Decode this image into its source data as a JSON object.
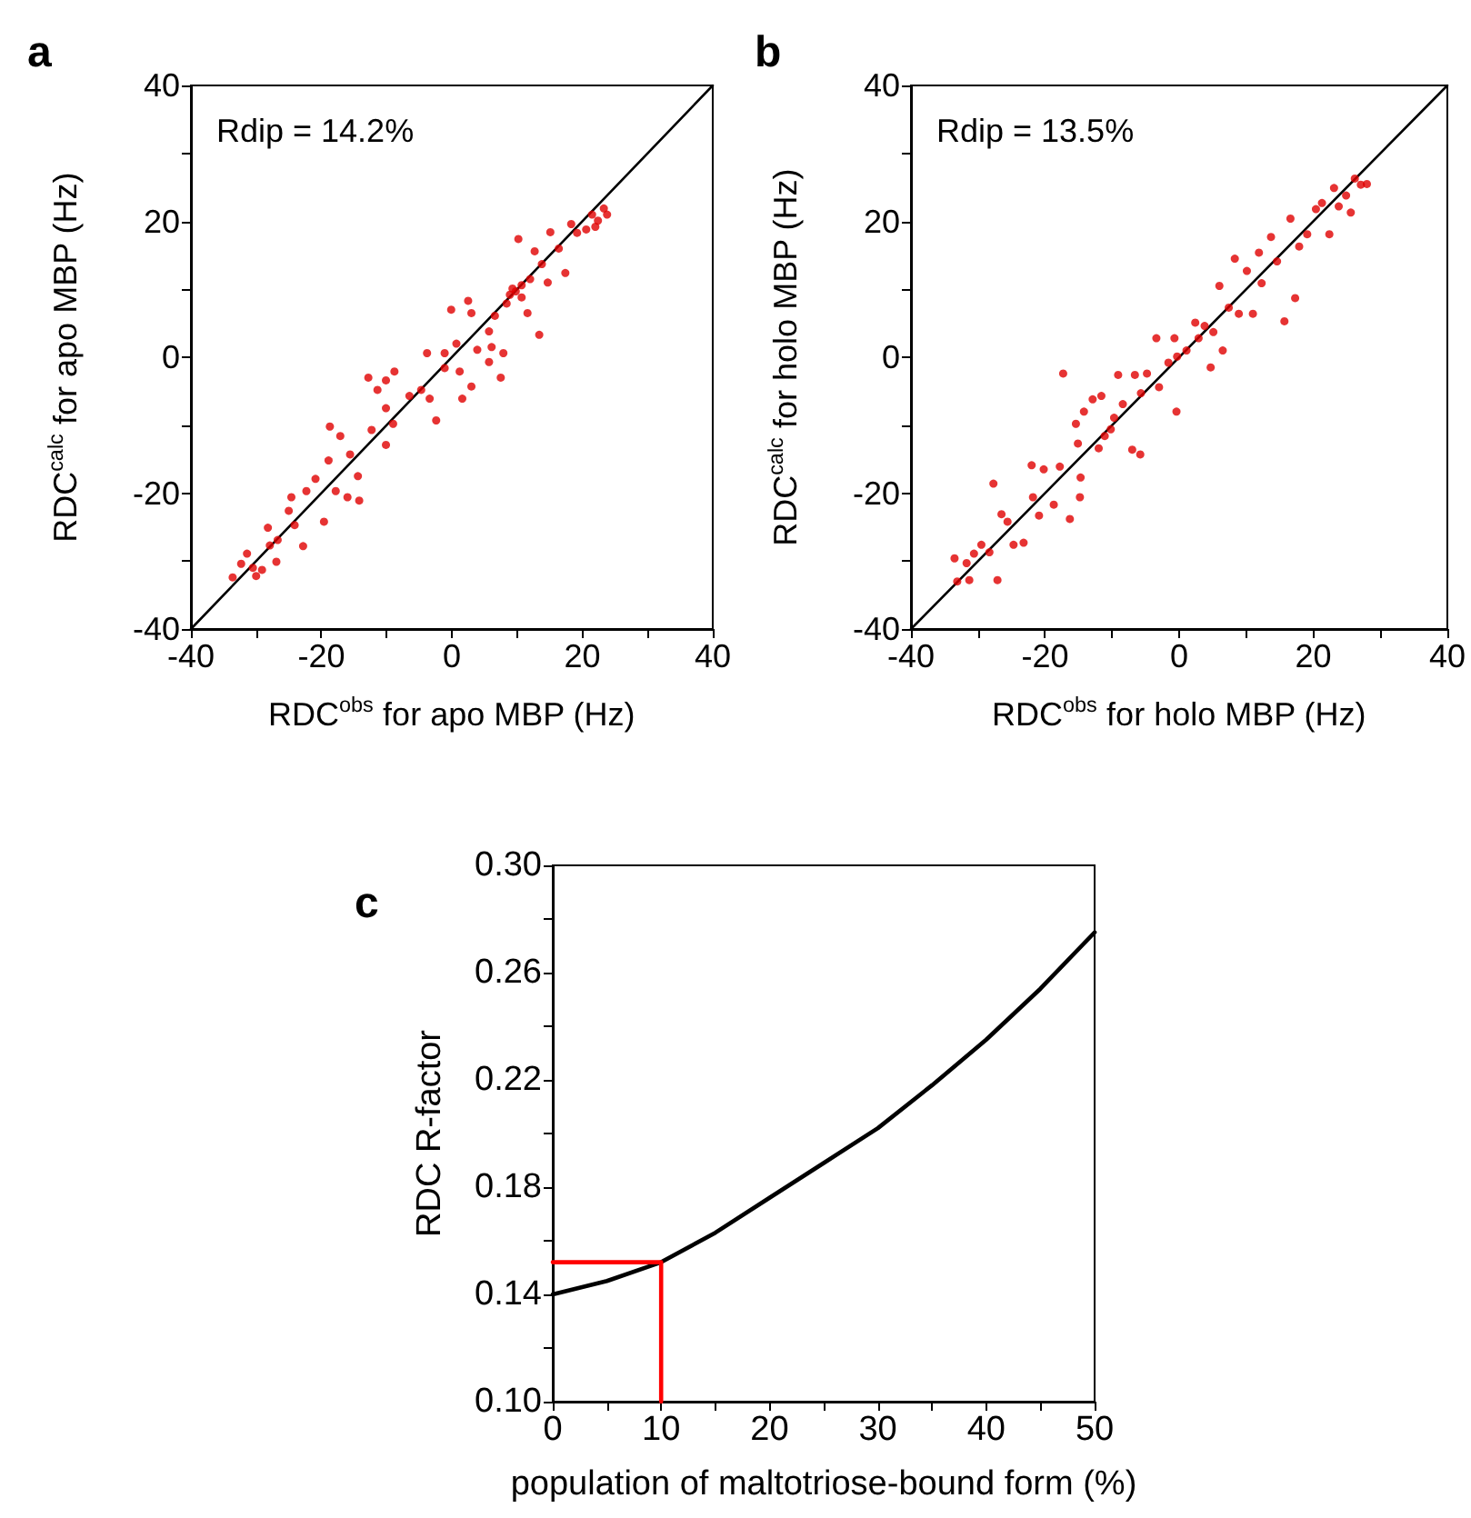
{
  "chart_data": [
    {
      "type": "scatter",
      "title": "a",
      "xlabel": "RDC$^{obs}$ for apo MBP (Hz)",
      "ylabel": "RDC$^{calc}$ for apo MBP (Hz)",
      "annotations": [
        "Rdip = 14.2%"
      ],
      "xlim": [
        -40,
        40
      ],
      "ylim": [
        -40,
        40
      ],
      "xticks": [
        -40,
        {
          "value": -30,
          "label": null
        },
        -20,
        {
          "value": -10,
          "label": null
        },
        0,
        {
          "value": 10,
          "label": null
        },
        20,
        {
          "value": 30,
          "label": null
        },
        40
      ],
      "yticks": [
        -40,
        {
          "value": -30,
          "label": null
        },
        -20,
        {
          "value": -10,
          "label": null
        },
        0,
        {
          "value": 10,
          "label": null
        },
        20,
        {
          "value": 30,
          "label": null
        },
        40
      ],
      "grid": false,
      "marker": "circle",
      "series": [
        {
          "color": "#e00000",
          "x": [
            -33.6,
            -32.3,
            -31.4,
            -30.5,
            -30,
            -29.1,
            -28.2,
            -27.9,
            -26.9,
            -26.7,
            -24.6,
            -25,
            -24.1,
            -22.8,
            -22.3,
            -20.9,
            -19.6,
            -18.7,
            -18.9,
            -17.8,
            -17.1,
            -16,
            -15.6,
            -14.4,
            -14.2,
            -12.8,
            -12.3,
            -11.4,
            -10.1,
            -10.1,
            -10.1,
            -8.8,
            -9,
            -6.5,
            -4.7,
            -3.8,
            -3.4,
            -2.4,
            -1.1,
            -1.1,
            -0.1,
            0.7,
            1.2,
            1.6,
            2.5,
            3,
            3,
            3.9,
            5.7,
            6.1,
            6.6,
            7.5,
            7.9,
            8.4,
            9.3,
            10.2,
            10.7,
            11.6,
            12,
            12.7,
            13.4,
            13.8,
            14.7,
            15.1,
            16.4,
            17.4,
            18.3,
            19.2,
            20.6,
            21.5,
            22,
            22.4,
            23.3,
            23.8,
            8.9,
            9.8,
            10.7,
            5.7
          ],
          "values": [
            -32.4,
            -30.4,
            -28.9,
            -31,
            -32.2,
            -31.3,
            -25.1,
            -27.7,
            -30.1,
            -26.9,
            -20.6,
            -22.6,
            -24.7,
            -27.8,
            -19.7,
            -17.9,
            -24.2,
            -10.2,
            -15.2,
            -19.7,
            -11.6,
            -20.6,
            -14.3,
            -17.5,
            -21.1,
            -3,
            -10.7,
            -4.8,
            -3.4,
            -7.5,
            -12.9,
            -2.1,
            -9.8,
            -5.7,
            -4.8,
            0.6,
            -6.1,
            -9.3,
            0.6,
            -1.6,
            7,
            2,
            -2.1,
            -6.1,
            8.3,
            6.5,
            -4.3,
            1.1,
            3.8,
            1.5,
            6.1,
            -3,
            0.6,
            7.9,
            10.1,
            17.4,
            8.8,
            6.5,
            11.5,
            15.6,
            3.3,
            13.7,
            11,
            18.4,
            16,
            12.4,
            19.6,
            18.3,
            18.8,
            21,
            19.2,
            20.1,
            21.9,
            21,
            9.2,
            9.7,
            10.6,
            -0.7
          ]
        },
        {
          "type": "line",
          "color": "#000000",
          "marker": "none",
          "line_style": "solid",
          "x": [
            -40,
            40
          ],
          "values": [
            -40,
            40
          ]
        }
      ]
    },
    {
      "type": "scatter",
      "title": "b",
      "xlabel": "RDC$^{obs}$ for holo MBP (Hz)",
      "ylabel": "RDC$^{calc}$ for holo MBP (Hz)",
      "annotations": [
        "Rdip = 13.5%"
      ],
      "xlim": [
        -40,
        40
      ],
      "ylim": [
        -40,
        40
      ],
      "xticks": [
        -40,
        {
          "value": -30,
          "label": null
        },
        -20,
        {
          "value": -10,
          "label": null
        },
        0,
        {
          "value": 10,
          "label": null
        },
        20,
        {
          "value": 30,
          "label": null
        },
        40
      ],
      "yticks": [
        -40,
        {
          "value": -30,
          "label": null
        },
        -20,
        {
          "value": -10,
          "label": null
        },
        0,
        {
          "value": 10,
          "label": null
        },
        20,
        {
          "value": 30,
          "label": null
        },
        40
      ],
      "grid": false,
      "marker": "circle",
      "series": [
        {
          "color": "#e00000",
          "x": [
            -33.5,
            -33.1,
            -31.7,
            -31.3,
            -30.6,
            -29.5,
            -28.3,
            -27.7,
            -27.1,
            -26.5,
            -25.6,
            -24.7,
            -23.2,
            -22,
            -21.8,
            -20.9,
            -20.2,
            -18.7,
            -17.8,
            -17.3,
            -16.3,
            -15.4,
            -15.1,
            -14.8,
            -14.7,
            -14.2,
            -12.9,
            -12,
            -11.6,
            -11.1,
            -10.2,
            -9.7,
            -9.1,
            -8.4,
            -7,
            -6.6,
            -5.8,
            -5.7,
            -4.8,
            -3.4,
            -3,
            -1.6,
            -0.7,
            -0.4,
            -0.3,
            1.1,
            2.4,
            2.9,
            3.8,
            4.7,
            5.1,
            6,
            6.5,
            7.4,
            8.3,
            8.9,
            10.1,
            11,
            11.9,
            12.3,
            13.7,
            14.6,
            15.7,
            16.6,
            17.3,
            17.9,
            19.1,
            20.4,
            21.3,
            22.4,
            23.1,
            23.8,
            24.9,
            25.6,
            26.2,
            27.1,
            28
          ],
          "values": [
            -29.6,
            -33,
            -30.3,
            -32.8,
            -28.9,
            -27.6,
            -28.7,
            -18.6,
            -32.8,
            -23.1,
            -24.2,
            -27.6,
            -27.3,
            -15.9,
            -20.6,
            -23.3,
            -16.5,
            -21.7,
            -16.1,
            -2.4,
            -23.8,
            -9.8,
            -12.7,
            -20.6,
            -17.7,
            -8,
            -6.2,
            -13.4,
            -5.7,
            -11.6,
            -10.6,
            -8.9,
            -2.6,
            -6.9,
            -13.6,
            -2.6,
            -14.3,
            -5.3,
            -2.4,
            2.8,
            -4.4,
            -0.8,
            2.8,
            -8,
            0.1,
            1,
            5.1,
            2.8,
            4.6,
            -1.5,
            3.7,
            10.5,
            1,
            7.3,
            14.5,
            6.4,
            12.7,
            6.4,
            15.4,
            10.9,
            17.7,
            14.1,
            5.3,
            20.4,
            8.7,
            16.3,
            18.1,
            21.8,
            22.7,
            18.1,
            24.9,
            22.2,
            23.8,
            21.3,
            26.3,
            25.4,
            25.5
          ]
        },
        {
          "type": "line",
          "color": "#000000",
          "marker": "none",
          "line_style": "solid",
          "x": [
            -40,
            40
          ],
          "values": [
            -40,
            40
          ]
        }
      ]
    },
    {
      "type": "line",
      "title": "c",
      "xlabel": "population of maltotriose-bound form (%)",
      "ylabel": "RDC R-factor",
      "xlim": [
        0,
        50
      ],
      "ylim": [
        0.1,
        0.3
      ],
      "xticks": [
        0,
        {
          "value": 5,
          "label": null
        },
        10,
        {
          "value": 15,
          "label": null
        },
        20,
        {
          "value": 25,
          "label": null
        },
        30,
        {
          "value": 35,
          "label": null
        },
        40,
        {
          "value": 45,
          "label": null
        },
        50
      ],
      "yticks": [
        {
          "value": 0.1,
          "label": "0.10"
        },
        {
          "value": 0.12,
          "label": null
        },
        0.14,
        {
          "value": 0.16,
          "label": null
        },
        0.18,
        {
          "value": 0.2,
          "label": null
        },
        0.22,
        {
          "value": 0.24,
          "label": null
        },
        0.26,
        {
          "value": 0.28,
          "label": null
        },
        {
          "value": 0.3,
          "label": "0.30"
        }
      ],
      "grid": false,
      "marker": "none",
      "line_style": "solid",
      "series": [
        {
          "color": "#000000",
          "x": [
            0,
            5,
            10,
            15,
            20,
            25,
            30,
            35,
            40,
            45,
            50
          ],
          "values": [
            0.14,
            0.145,
            0.152,
            0.163,
            0.176,
            0.189,
            0.202,
            0.218,
            0.235,
            0.254,
            0.275
          ]
        },
        {
          "color": "#ff0000",
          "x": [
            0,
            10,
            10
          ],
          "values": [
            0.152,
            0.152,
            0.1
          ]
        }
      ]
    }
  ]
}
